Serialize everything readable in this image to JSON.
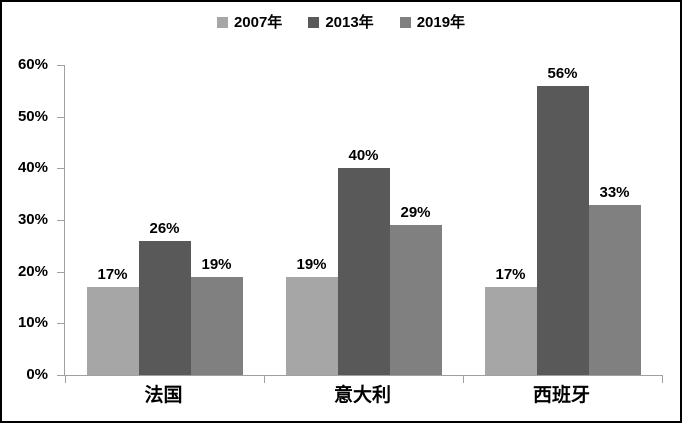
{
  "chart_data": {
    "type": "bar",
    "title": "",
    "categories": [
      "法国",
      "意大利",
      "西班牙"
    ],
    "series": [
      {
        "name": "2007年",
        "color": "#a6a6a6",
        "values": [
          17,
          19,
          17
        ]
      },
      {
        "name": "2013年",
        "color": "#595959",
        "values": [
          26,
          40,
          56
        ]
      },
      {
        "name": "2019年",
        "color": "#808080",
        "values": [
          19,
          29,
          33
        ]
      }
    ],
    "data_labels": [
      [
        "17%",
        "19%",
        "17%"
      ],
      [
        "26%",
        "40%",
        "56%"
      ],
      [
        "19%",
        "29%",
        "33%"
      ]
    ],
    "ylim": [
      0,
      60
    ],
    "yticks": [
      0,
      10,
      20,
      30,
      40,
      50,
      60
    ],
    "ytick_labels": [
      "0%",
      "10%",
      "20%",
      "30%",
      "40%",
      "50%",
      "60%"
    ],
    "xlabel": "",
    "ylabel": "",
    "grid": "off",
    "legend_position": "top",
    "axis_color": "#a0a0a0",
    "border_color": "#000000",
    "background_color": "#ffffff"
  }
}
